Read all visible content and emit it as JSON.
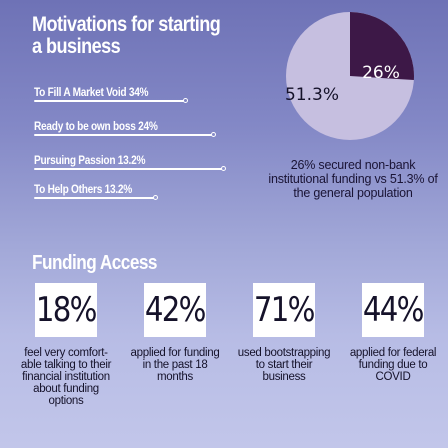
{
  "title": "Motivations for starting a business",
  "motivations": [
    {
      "label": "To Fill A Market Void  34%",
      "value": 34
    },
    {
      "label": "Ready to be own boss  24%",
      "value": 24
    },
    {
      "label": "Pursuing Passion  13.2%",
      "value": 13.2
    },
    {
      "label": "To Help Others  13.2%",
      "value": 13.2
    }
  ],
  "chart_data": {
    "type": "pie",
    "slices": [
      {
        "label": "26%",
        "value": 26,
        "color": "#3d1847"
      },
      {
        "label": "51.3%",
        "value": 51.3,
        "color": "#c6bfe0"
      }
    ],
    "caption": "26% secured non-bank institutional funding vs 51.3% of the general population"
  },
  "funding": {
    "title": "Funding Access",
    "stats": [
      {
        "value": "18%",
        "description": "feel very comfort-able talking to their financial institution about funding options"
      },
      {
        "value": "42%",
        "description": "applied for funding in the past 18 months"
      },
      {
        "value": "71%",
        "description": "used bootstrapping to start their business"
      },
      {
        "value": "44%",
        "description": "applied for federal funding due to COVID"
      }
    ]
  },
  "colors": {
    "highlight": "#3d1847",
    "light_slice": "#c6bfe0",
    "accent_line": "#ffffff"
  }
}
